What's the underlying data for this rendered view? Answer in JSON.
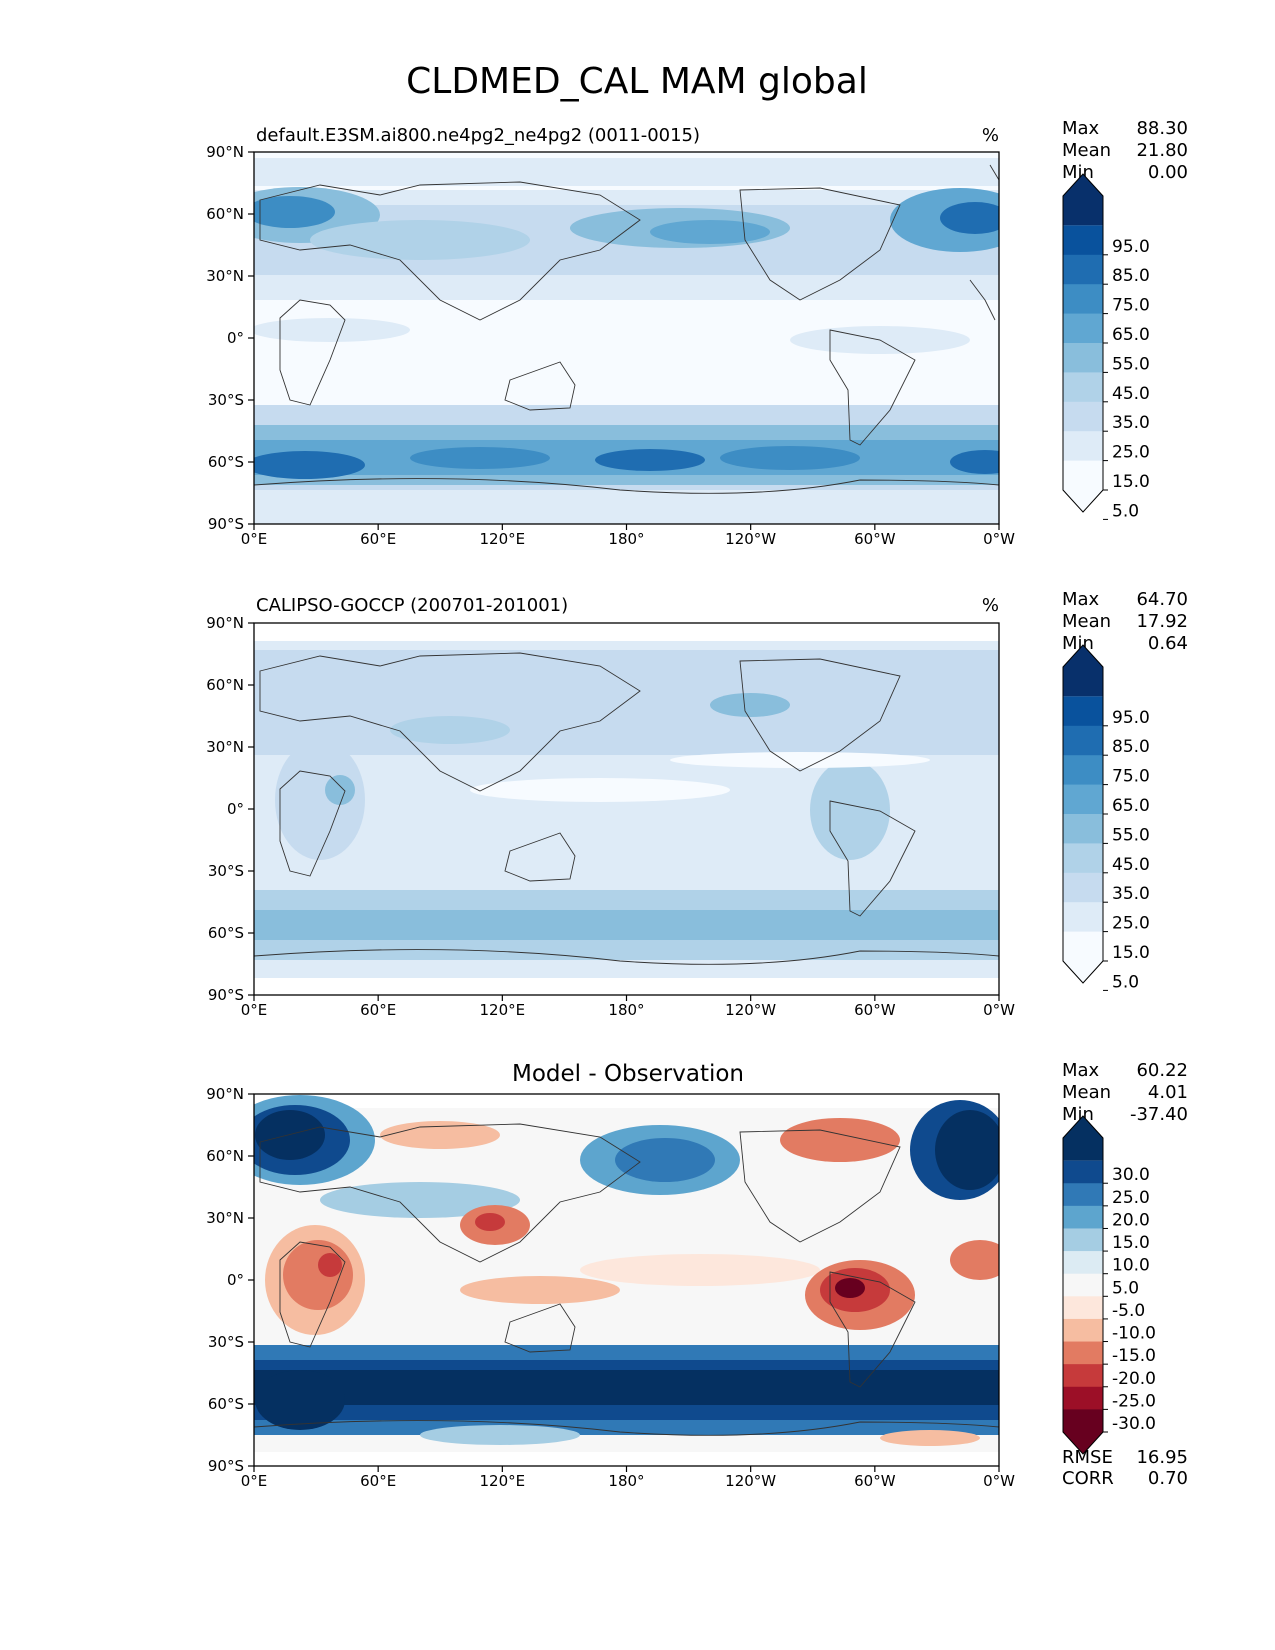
{
  "title": "CLDMED_CAL MAM global",
  "colors": {
    "seq": [
      "#f7fbff",
      "#deebf7",
      "#c6dbef",
      "#b0d2e8",
      "#89bedc",
      "#60a7d2",
      "#3d8dc4",
      "#1f6db1",
      "#09529d",
      "#08306b"
    ],
    "div": [
      "#67001f",
      "#9c0f27",
      "#c63a3b",
      "#e27b62",
      "#f6bda1",
      "#fde7dc",
      "#f7f7f7",
      "#dcebf3",
      "#a5cde3",
      "#5da5ce",
      "#3079b6",
      "#0f4a8e",
      "#053061"
    ]
  },
  "lon_ticks": [
    "0°E",
    "60°E",
    "120°E",
    "180°",
    "120°W",
    "60°W",
    "0°W"
  ],
  "lat_ticks": [
    "90°N",
    "60°N",
    "30°N",
    "0°",
    "30°S",
    "60°S",
    "90°S"
  ],
  "panels": [
    {
      "key": "model",
      "label": "default.E3SM.ai800.ne4pg2_ne4pg2 (0011-0015)",
      "units": "%",
      "stats": [
        [
          "Max",
          "88.30"
        ],
        [
          "Mean",
          "21.80"
        ],
        [
          "Min",
          "0.00"
        ]
      ],
      "colorbar_labels": [
        "95.0",
        "85.0",
        "75.0",
        "65.0",
        "55.0",
        "45.0",
        "35.0",
        "25.0",
        "15.0",
        "5.0"
      ]
    },
    {
      "key": "obs",
      "label": "CALIPSO-GOCCP (200701-201001)",
      "units": "%",
      "stats": [
        [
          "Max",
          "64.70"
        ],
        [
          "Mean",
          "17.92"
        ],
        [
          "Min",
          "0.64"
        ]
      ],
      "colorbar_labels": [
        "95.0",
        "85.0",
        "75.0",
        "65.0",
        "55.0",
        "45.0",
        "35.0",
        "25.0",
        "15.0",
        "5.0"
      ]
    },
    {
      "key": "diff",
      "label": "Model - Observation",
      "units": "",
      "stats": [
        [
          "Max",
          "60.22"
        ],
        [
          "Mean",
          "4.01"
        ],
        [
          "Min",
          "-37.40"
        ]
      ],
      "colorbar_labels": [
        "30.0",
        "25.0",
        "20.0",
        "15.0",
        "10.0",
        "5.0",
        "-5.0",
        "-10.0",
        "-15.0",
        "-20.0",
        "-25.0",
        "-30.0"
      ],
      "metrics": [
        [
          "RMSE",
          "16.95"
        ],
        [
          "CORR",
          "0.70"
        ]
      ]
    }
  ]
}
